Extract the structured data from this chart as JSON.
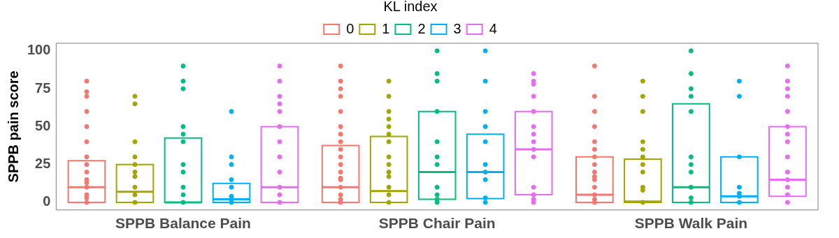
{
  "chart_data": {
    "type": "box",
    "ylabel": "SPPB pain score",
    "legend_title": "KL index",
    "legend": "top",
    "grid": false,
    "marker": "circle",
    "categories": [
      "SPPB Balance Pain",
      "SPPB Chair Pain",
      "SPPB Walk Pain"
    ],
    "ylim": [
      -5,
      105
    ],
    "yticks": [
      0,
      25,
      50,
      75,
      100
    ],
    "series": [
      {
        "name": "0",
        "color": "#f8766d",
        "boxes": [
          {
            "low": 0,
            "q1": 0,
            "median": 10,
            "q3": 27.5,
            "high": 27.5
          },
          {
            "low": 0,
            "q1": 0,
            "median": 10,
            "q3": 37.5,
            "high": 37.5
          },
          {
            "low": 0,
            "q1": 0,
            "median": 5,
            "q3": 30,
            "high": 30
          }
        ]
      },
      {
        "name": "1",
        "color": "#a3a500",
        "boxes": [
          {
            "low": 0,
            "q1": 0,
            "median": 7,
            "q3": 25,
            "high": 25
          },
          {
            "low": 0,
            "q1": 0,
            "median": 7.5,
            "q3": 43.5,
            "high": 43.5
          },
          {
            "low": 0,
            "q1": 0,
            "median": 0.5,
            "q3": 28.5,
            "high": 28.5
          }
        ]
      },
      {
        "name": "2",
        "color": "#00bf7d",
        "boxes": [
          {
            "low": 0,
            "q1": 0,
            "median": 0,
            "q3": 42.5,
            "high": 42.5
          },
          {
            "low": 2,
            "q1": 2,
            "median": 20,
            "q3": 60,
            "high": 60
          },
          {
            "low": 0,
            "q1": 0,
            "median": 10,
            "q3": 65,
            "high": 65
          }
        ]
      },
      {
        "name": "3",
        "color": "#00b0f6",
        "boxes": [
          {
            "low": 0,
            "q1": 0,
            "median": 2,
            "q3": 12.5,
            "high": 12.5
          },
          {
            "low": 2.5,
            "q1": 2.5,
            "median": 20,
            "q3": 45,
            "high": 45
          },
          {
            "low": 0,
            "q1": 0,
            "median": 4,
            "q3": 30,
            "high": 30
          }
        ]
      },
      {
        "name": "4",
        "color": "#e76bf3",
        "boxes": [
          {
            "low": 0,
            "q1": 0,
            "median": 10,
            "q3": 50,
            "high": 50
          },
          {
            "low": 5,
            "q1": 5,
            "median": 35,
            "q3": 60,
            "high": 60
          },
          {
            "low": 4,
            "q1": 4,
            "median": 15,
            "q3": 50,
            "high": 50
          }
        ]
      },
      {
        "type": "scatter",
        "color": "#f8766d",
        "x": [
          "SPPB Balance Pain",
          "SPPB Balance Pain",
          "SPPB Balance Pain",
          "SPPB Balance Pain",
          "SPPB Balance Pain",
          "SPPB Balance Pain",
          "SPPB Balance Pain",
          "SPPB Balance Pain",
          "SPPB Balance Pain",
          "SPPB Balance Pain",
          "SPPB Balance Pain",
          "SPPB Balance Pain",
          "SPPB Balance Pain",
          "SPPB Balance Pain",
          "SPPB Balance Pain",
          "SPPB Chair Pain",
          "SPPB Chair Pain",
          "SPPB Chair Pain",
          "SPPB Chair Pain",
          "SPPB Chair Pain",
          "SPPB Chair Pain",
          "SPPB Chair Pain",
          "SPPB Chair Pain",
          "SPPB Chair Pain",
          "SPPB Chair Pain",
          "SPPB Chair Pain",
          "SPPB Chair Pain",
          "SPPB Chair Pain",
          "SPPB Chair Pain",
          "SPPB Chair Pain",
          "SPPB Chair Pain",
          "SPPB Chair Pain",
          "SPPB Chair Pain",
          "SPPB Walk Pain",
          "SPPB Walk Pain",
          "SPPB Walk Pain",
          "SPPB Walk Pain",
          "SPPB Walk Pain",
          "SPPB Walk Pain",
          "SPPB Walk Pain",
          "SPPB Walk Pain",
          "SPPB Walk Pain",
          "SPPB Walk Pain",
          "SPPB Walk Pain",
          "SPPB Walk Pain",
          "SPPB Walk Pain",
          "SPPB Walk Pain",
          "SPPB Walk Pain"
        ],
        "values": [
          80,
          73,
          70,
          60,
          50,
          40,
          30,
          25,
          20,
          15,
          13,
          10,
          5,
          3,
          0,
          90,
          80,
          75,
          70,
          60,
          50,
          45,
          40,
          35,
          30,
          25,
          20,
          16,
          15,
          10,
          5,
          2,
          0,
          90,
          70,
          60,
          50,
          40,
          35,
          30,
          25,
          20,
          17,
          15,
          10,
          5,
          2,
          0
        ]
      },
      {
        "type": "scatter",
        "color": "#a3a500",
        "x": [
          "SPPB Balance Pain",
          "SPPB Balance Pain",
          "SPPB Balance Pain",
          "SPPB Balance Pain",
          "SPPB Balance Pain",
          "SPPB Balance Pain",
          "SPPB Balance Pain",
          "SPPB Balance Pain",
          "SPPB Balance Pain",
          "SPPB Balance Pain",
          "SPPB Chair Pain",
          "SPPB Chair Pain",
          "SPPB Chair Pain",
          "SPPB Chair Pain",
          "SPPB Chair Pain",
          "SPPB Chair Pain",
          "SPPB Chair Pain",
          "SPPB Chair Pain",
          "SPPB Chair Pain",
          "SPPB Chair Pain",
          "SPPB Chair Pain",
          "SPPB Chair Pain",
          "SPPB Chair Pain",
          "SPPB Chair Pain",
          "SPPB Walk Pain",
          "SPPB Walk Pain",
          "SPPB Walk Pain",
          "SPPB Walk Pain",
          "SPPB Walk Pain",
          "SPPB Walk Pain",
          "SPPB Walk Pain",
          "SPPB Walk Pain",
          "SPPB Walk Pain",
          "SPPB Walk Pain",
          "SPPB Walk Pain"
        ],
        "values": [
          70,
          65,
          40,
          30,
          25,
          20,
          17,
          10,
          5,
          0,
          80,
          70,
          60,
          55,
          50,
          45,
          40,
          30,
          25,
          20,
          17,
          10,
          5,
          0,
          80,
          70,
          60,
          40,
          35,
          30,
          25,
          20,
          10,
          8,
          0
        ]
      },
      {
        "type": "scatter",
        "color": "#00bf7d",
        "x": [
          "SPPB Balance Pain",
          "SPPB Balance Pain",
          "SPPB Balance Pain",
          "SPPB Balance Pain",
          "SPPB Balance Pain",
          "SPPB Balance Pain",
          "SPPB Balance Pain",
          "SPPB Balance Pain",
          "SPPB Balance Pain",
          "SPPB Balance Pain",
          "SPPB Balance Pain",
          "SPPB Chair Pain",
          "SPPB Chair Pain",
          "SPPB Chair Pain",
          "SPPB Chair Pain",
          "SPPB Chair Pain",
          "SPPB Chair Pain",
          "SPPB Chair Pain",
          "SPPB Chair Pain",
          "SPPB Chair Pain",
          "SPPB Chair Pain",
          "SPPB Chair Pain",
          "SPPB Walk Pain",
          "SPPB Walk Pain",
          "SPPB Walk Pain",
          "SPPB Walk Pain",
          "SPPB Walk Pain",
          "SPPB Walk Pain",
          "SPPB Walk Pain",
          "SPPB Walk Pain",
          "SPPB Walk Pain",
          "SPPB Walk Pain",
          "SPPB Walk Pain"
        ],
        "values": [
          90,
          80,
          75,
          50,
          45,
          40,
          25,
          20,
          10,
          5,
          0,
          100,
          85,
          80,
          60,
          40,
          30,
          25,
          10,
          5,
          2,
          0,
          100,
          85,
          75,
          70,
          60,
          30,
          25,
          20,
          10,
          3,
          0
        ]
      },
      {
        "type": "scatter",
        "color": "#00b0f6",
        "x": [
          "SPPB Balance Pain",
          "SPPB Balance Pain",
          "SPPB Balance Pain",
          "SPPB Balance Pain",
          "SPPB Balance Pain",
          "SPPB Balance Pain",
          "SPPB Balance Pain",
          "SPPB Balance Pain",
          "SPPB Chair Pain",
          "SPPB Chair Pain",
          "SPPB Chair Pain",
          "SPPB Chair Pain",
          "SPPB Chair Pain",
          "SPPB Chair Pain",
          "SPPB Chair Pain",
          "SPPB Chair Pain",
          "SPPB Chair Pain",
          "SPPB Chair Pain",
          "SPPB Walk Pain",
          "SPPB Walk Pain",
          "SPPB Walk Pain",
          "SPPB Walk Pain",
          "SPPB Walk Pain",
          "SPPB Walk Pain",
          "SPPB Walk Pain"
        ],
        "values": [
          60,
          30,
          25,
          15,
          10,
          4,
          2,
          0,
          100,
          80,
          60,
          50,
          40,
          25,
          20,
          15,
          3,
          0,
          80,
          70,
          30,
          10,
          6,
          4,
          0
        ]
      },
      {
        "type": "scatter",
        "color": "#e76bf3",
        "x": [
          "SPPB Balance Pain",
          "SPPB Balance Pain",
          "SPPB Balance Pain",
          "SPPB Balance Pain",
          "SPPB Balance Pain",
          "SPPB Balance Pain",
          "SPPB Balance Pain",
          "SPPB Balance Pain",
          "SPPB Balance Pain",
          "SPPB Balance Pain",
          "SPPB Balance Pain",
          "SPPB Balance Pain",
          "SPPB Chair Pain",
          "SPPB Chair Pain",
          "SPPB Chair Pain",
          "SPPB Chair Pain",
          "SPPB Chair Pain",
          "SPPB Chair Pain",
          "SPPB Chair Pain",
          "SPPB Chair Pain",
          "SPPB Chair Pain",
          "SPPB Chair Pain",
          "SPPB Chair Pain",
          "SPPB Chair Pain",
          "SPPB Chair Pain",
          "SPPB Chair Pain",
          "SPPB Walk Pain",
          "SPPB Walk Pain",
          "SPPB Walk Pain",
          "SPPB Walk Pain",
          "SPPB Walk Pain",
          "SPPB Walk Pain",
          "SPPB Walk Pain",
          "SPPB Walk Pain",
          "SPPB Walk Pain",
          "SPPB Walk Pain",
          "SPPB Walk Pain",
          "SPPB Walk Pain",
          "SPPB Walk Pain",
          "SPPB Walk Pain"
        ],
        "values": [
          90,
          80,
          70,
          65,
          60,
          50,
          40,
          30,
          20,
          10,
          5,
          0,
          85,
          80,
          78,
          70,
          60,
          50,
          45,
          40,
          35,
          30,
          10,
          5,
          2,
          0,
          90,
          80,
          75,
          70,
          60,
          50,
          45,
          40,
          30,
          20,
          15,
          10,
          5,
          0
        ]
      }
    ]
  }
}
